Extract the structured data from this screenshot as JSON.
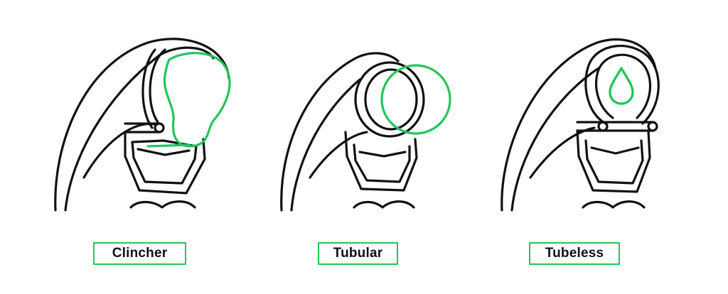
{
  "colors": {
    "accent": "#22c55e",
    "stroke": "#111111",
    "background": "#ffffff"
  },
  "types": [
    {
      "id": "clincher",
      "label": "Clincher",
      "icon": "clincher-tire-cross-section-icon"
    },
    {
      "id": "tubular",
      "label": "Tubular",
      "icon": "tubular-tire-cross-section-icon"
    },
    {
      "id": "tubeless",
      "label": "Tubeless",
      "icon": "tubeless-tire-cross-section-icon"
    }
  ]
}
